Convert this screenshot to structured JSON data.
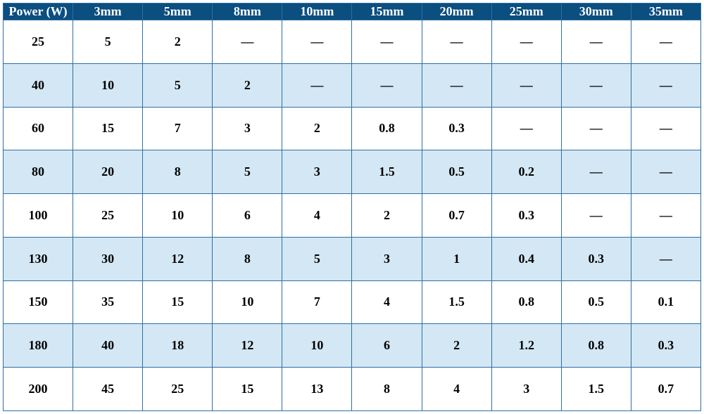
{
  "table": {
    "type": "table",
    "header_bg": "#0b4e80",
    "header_text_color": "#ffffff",
    "row_bg_even": "#ffffff",
    "row_bg_odd": "#d3e7f4",
    "border_color": "#2f6fa3",
    "cell_text_color": "#000000",
    "font_family": "Times New Roman",
    "header_fontsize_pt": 14,
    "cell_fontsize_pt": 14,
    "font_weight": "bold",
    "empty_glyph": "—",
    "columns": [
      "Power (W)",
      "3mm",
      "5mm",
      "8mm",
      "10mm",
      "15mm",
      "20mm",
      "25mm",
      "30mm",
      "35mm"
    ],
    "rows": [
      [
        "25",
        "5",
        "2",
        "—",
        "—",
        "—",
        "—",
        "—",
        "—",
        "—"
      ],
      [
        "40",
        "10",
        "5",
        "2",
        "—",
        "—",
        "—",
        "—",
        "—",
        "—"
      ],
      [
        "60",
        "15",
        "7",
        "3",
        "2",
        "0.8",
        "0.3",
        "—",
        "—",
        "—"
      ],
      [
        "80",
        "20",
        "8",
        "5",
        "3",
        "1.5",
        "0.5",
        "0.2",
        "—",
        "—"
      ],
      [
        "100",
        "25",
        "10",
        "6",
        "4",
        "2",
        "0.7",
        "0.3",
        "—",
        "—"
      ],
      [
        "130",
        "30",
        "12",
        "8",
        "5",
        "3",
        "1",
        "0.4",
        "0.3",
        "—"
      ],
      [
        "150",
        "35",
        "15",
        "10",
        "7",
        "4",
        "1.5",
        "0.8",
        "0.5",
        "0.1"
      ],
      [
        "180",
        "40",
        "18",
        "12",
        "10",
        "6",
        "2",
        "1.2",
        "0.8",
        "0.3"
      ],
      [
        "200",
        "45",
        "25",
        "15",
        "13",
        "8",
        "4",
        "3",
        "1.5",
        "0.7"
      ]
    ]
  }
}
